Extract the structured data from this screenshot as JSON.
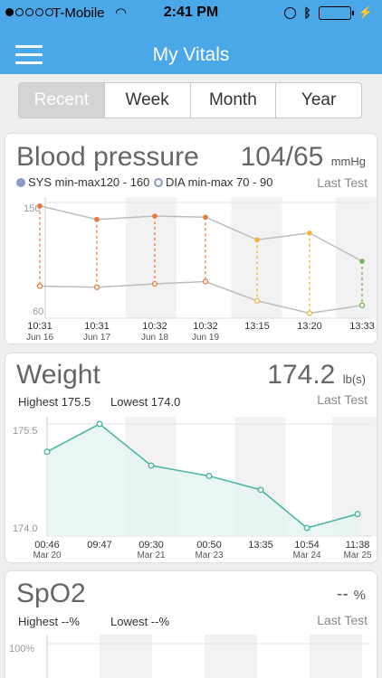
{
  "status_bar": {
    "carrier": "T-Mobile",
    "time": "2:41 PM"
  },
  "header": {
    "title": "My Vitals"
  },
  "tabs": [
    {
      "label": "Recent",
      "active": true
    },
    {
      "label": "Week",
      "active": false
    },
    {
      "label": "Month",
      "active": false
    },
    {
      "label": "Year",
      "active": false
    }
  ],
  "blood_pressure": {
    "title": "Blood pressure",
    "value": "104/65",
    "unit": "mmHg",
    "sys_range": "SYS  min-max120 - 160",
    "dia_range": "DIA  min-max 70 - 90",
    "last_test": "Last Test"
  },
  "weight": {
    "title": "Weight",
    "value": "174.2",
    "unit": "lb(s)",
    "highest": "Highest 175.5",
    "lowest": "Lowest 174.0",
    "last_test": "Last Test"
  },
  "spo2": {
    "title": "SpO2",
    "value": "--",
    "unit": "%",
    "highest": "Highest --%",
    "lowest": "Lowest --%",
    "last_test": "Last Test"
  },
  "chart_data": [
    {
      "type": "line",
      "y_tick_labels": [
        "156",
        "60"
      ],
      "ylim": [
        60,
        156
      ],
      "x_times": [
        "10:31",
        "10:31",
        "10:32",
        "10:32",
        "13:15",
        "13:20",
        "13:33"
      ],
      "x_dates": [
        "Jun 16",
        "Jun 17",
        "Jun 18",
        "Jun 19",
        "",
        "",
        ""
      ],
      "series": [
        {
          "name": "SYS",
          "values": [
            153,
            141,
            144,
            143,
            123,
            129,
            104
          ]
        },
        {
          "name": "DIA",
          "values": [
            82,
            81,
            84,
            86,
            69,
            58,
            65
          ]
        }
      ],
      "point_colors": [
        "#e8793b",
        "#e8793b",
        "#e8793b",
        "#e8793b",
        "#f2b533",
        "#f2b533",
        "#6ab84a"
      ],
      "colors": {
        "line": "#bdbdbd"
      }
    },
    {
      "type": "area",
      "y_tick_labels": [
        "175.5",
        "174.0"
      ],
      "ylim": [
        174.0,
        175.5
      ],
      "x_times": [
        "00:46",
        "09:47",
        "09:30",
        "00:50",
        "13:35",
        "10:54",
        "11:38"
      ],
      "x_dates": [
        "Mar 20",
        "",
        "Mar 21",
        "Mar 23",
        "",
        "Mar 24",
        "Mar 25"
      ],
      "series": [
        {
          "name": "Weight",
          "values": [
            175.1,
            175.5,
            174.9,
            174.75,
            174.55,
            174.0,
            174.2
          ]
        }
      ],
      "colors": {
        "line": "#4db6a6",
        "fill": "#e6f4f1"
      }
    },
    {
      "type": "line",
      "y_tick_labels": [
        "100%"
      ],
      "series": []
    }
  ]
}
